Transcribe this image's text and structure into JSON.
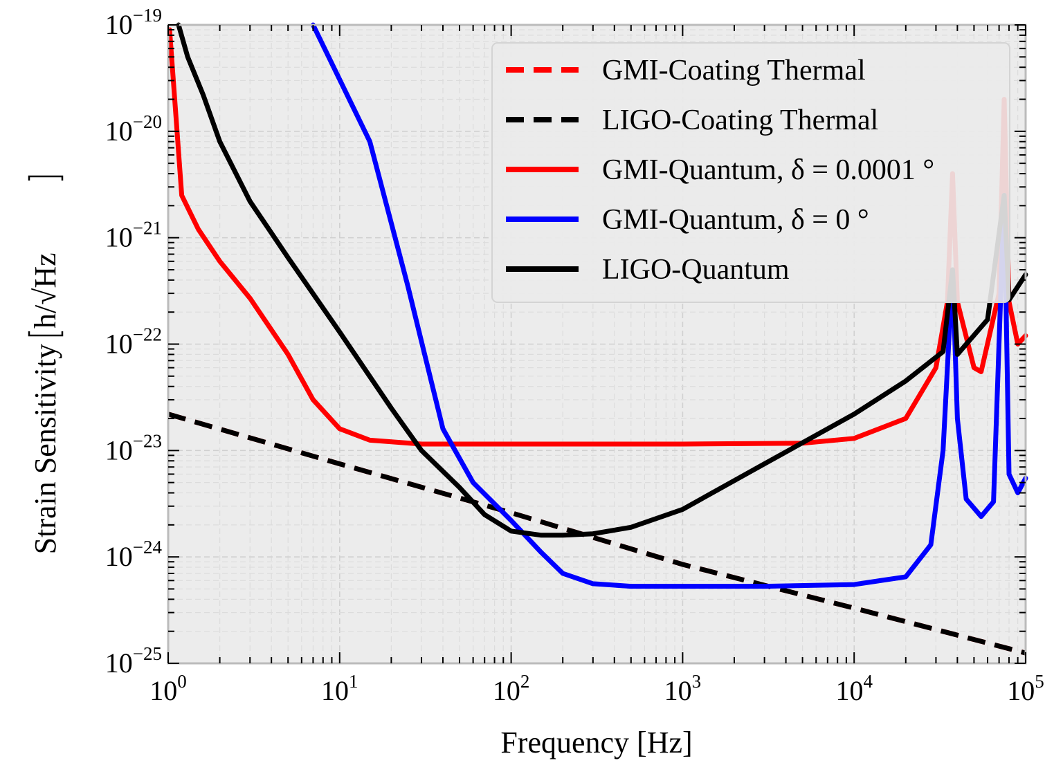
{
  "chart_data": {
    "type": "line",
    "title": "",
    "xlabel": "Frequency [Hz]",
    "ylabel": "Strain Sensitivity",
    "ylabel_unit": "h/√Hz",
    "xscale": "log",
    "yscale": "log",
    "xlim": [
      1,
      100000
    ],
    "ylim": [
      1e-25,
      1e-19
    ],
    "grid": true,
    "legend_position": "top-right",
    "x_ticks": [
      {
        "base": "10",
        "exp": "0"
      },
      {
        "base": "10",
        "exp": "1"
      },
      {
        "base": "10",
        "exp": "2"
      },
      {
        "base": "10",
        "exp": "3"
      },
      {
        "base": "10",
        "exp": "4"
      },
      {
        "base": "10",
        "exp": "5"
      }
    ],
    "y_ticks": [
      {
        "base": "10",
        "exp": "−25"
      },
      {
        "base": "10",
        "exp": "−24"
      },
      {
        "base": "10",
        "exp": "−23"
      },
      {
        "base": "10",
        "exp": "−22"
      },
      {
        "base": "10",
        "exp": "−21"
      },
      {
        "base": "10",
        "exp": "−20"
      },
      {
        "base": "10",
        "exp": "−19"
      }
    ],
    "series": [
      {
        "name": "GMI-Coating Thermal",
        "color": "#ff0000",
        "dashed": true,
        "x": [
          1,
          10,
          100,
          1000,
          10000,
          100000
        ],
        "y": [
          2.2e-23,
          7.5e-24,
          2.6e-24,
          8.5e-25,
          3.3e-25,
          1.25e-25
        ]
      },
      {
        "name": "LIGO-Coating Thermal",
        "color": "#000000",
        "dashed": true,
        "x": [
          1,
          10,
          100,
          1000,
          10000,
          100000
        ],
        "y": [
          2.2e-23,
          7.5e-24,
          2.6e-24,
          8.5e-25,
          3.3e-25,
          1.25e-25
        ]
      },
      {
        "name": "GMI-Quantum, δ = 0.0001 °",
        "color": "#ff0000",
        "dashed": false,
        "x": [
          1.02,
          1.2,
          1.5,
          2,
          3,
          5,
          7,
          10,
          15,
          30,
          100,
          1000,
          5000,
          10000,
          20000,
          30000,
          35000,
          37500,
          40000,
          50000,
          55000,
          70000,
          75000,
          80000,
          90000,
          100000
        ],
        "y": [
          9e-20,
          2.5e-21,
          1.2e-21,
          6e-22,
          2.7e-22,
          8e-23,
          3e-23,
          1.6e-23,
          1.25e-23,
          1.15e-23,
          1.15e-23,
          1.15e-23,
          1.17e-23,
          1.3e-23,
          2e-23,
          6e-23,
          2.5e-22,
          4e-21,
          2.5e-22,
          6e-23,
          5.5e-23,
          3e-22,
          2e-20,
          2.5e-22,
          1e-22,
          1.2e-22
        ]
      },
      {
        "name": "GMI-Quantum, δ = 0 °",
        "color": "#0000ff",
        "dashed": false,
        "x": [
          7,
          15,
          25,
          40,
          60,
          100,
          150,
          200,
          300,
          500,
          1000,
          3000,
          10000,
          20000,
          28000,
          33000,
          37500,
          40000,
          45000,
          55000,
          65000,
          75000,
          80000,
          90000,
          100000
        ],
        "y": [
          1e-19,
          8e-21,
          3.5e-22,
          1.6e-23,
          5e-24,
          2.2e-24,
          1.1e-24,
          7e-25,
          5.6e-25,
          5.3e-25,
          5.3e-25,
          5.3e-25,
          5.5e-25,
          6.5e-25,
          1.3e-24,
          1e-23,
          5e-22,
          2e-23,
          3.5e-24,
          2.4e-24,
          3.3e-24,
          2.5e-21,
          6e-24,
          4e-24,
          5.5e-24
        ]
      },
      {
        "name": "LIGO-Quantum",
        "color": "#000000",
        "dashed": false,
        "x": [
          1.15,
          1.3,
          1.6,
          2,
          3,
          5,
          10,
          20,
          30,
          50,
          70,
          100,
          150,
          200,
          300,
          500,
          1000,
          3000,
          10000,
          20000,
          33000,
          37500,
          40000,
          60000,
          75000,
          80000,
          100000
        ],
        "y": [
          1e-19,
          5e-20,
          2.2e-20,
          8e-21,
          2.2e-21,
          6.5e-22,
          1.3e-22,
          2.5e-23,
          1e-23,
          4.5e-24,
          2.5e-24,
          1.75e-24,
          1.6e-24,
          1.6e-24,
          1.65e-24,
          1.9e-24,
          2.8e-24,
          7.5e-24,
          2.2e-23,
          4.5e-23,
          8.5e-23,
          5e-22,
          8e-23,
          1.7e-22,
          2.5e-21,
          2.6e-22,
          4.5e-22
        ]
      }
    ]
  }
}
